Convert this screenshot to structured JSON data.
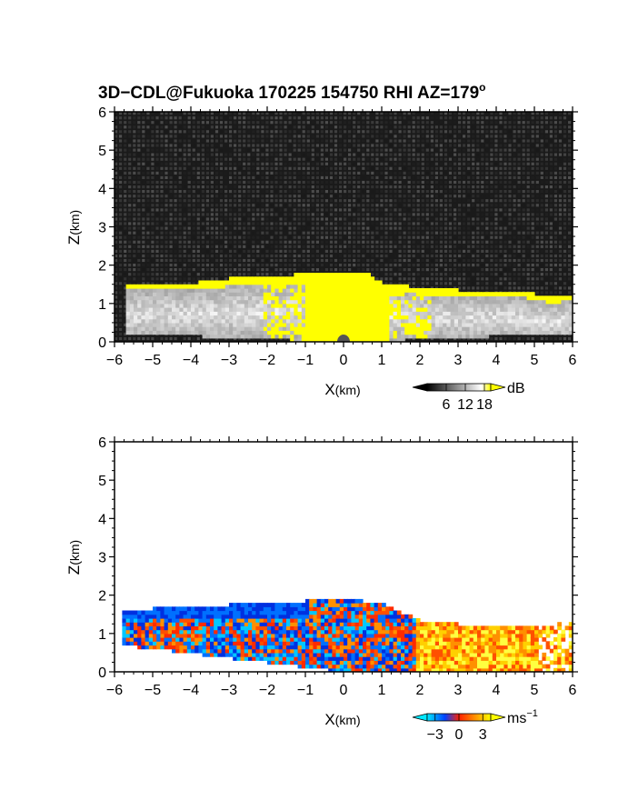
{
  "figure": {
    "title_main": "3D−CDL@Fukuoka 170225 154750 RHI AZ=179",
    "title_superscript": "o"
  },
  "chart_data": [
    {
      "type": "heatmap",
      "panel": "reflectivity",
      "xlabel_main": "X",
      "xlabel_unit": "(km)",
      "ylabel_main": "Z",
      "ylabel_unit": "(km)",
      "xlim": [
        -6,
        6
      ],
      "ylim": [
        0,
        6
      ],
      "x_ticks": [
        "−6",
        "−5",
        "−4",
        "−3",
        "−2",
        "−1",
        "0",
        "1",
        "2",
        "3",
        "4",
        "5",
        "6"
      ],
      "y_ticks": [
        "0",
        "1",
        "2",
        "3",
        "4",
        "5",
        "6"
      ],
      "colorbar": {
        "unit": "dB",
        "ticks": [
          "6",
          "12",
          "18"
        ],
        "range": [
          0,
          20
        ],
        "colors": [
          "#000000",
          "#ffffff",
          "#ffff00"
        ]
      },
      "echo_top_km": [
        [
          -5.7,
          1.5
        ],
        [
          -4.0,
          1.48
        ],
        [
          -3.0,
          1.6
        ],
        [
          -2.0,
          1.65
        ],
        [
          -1.0,
          1.72
        ],
        [
          0.0,
          1.78
        ],
        [
          0.6,
          1.75
        ],
        [
          1.0,
          1.5
        ],
        [
          2.0,
          1.35
        ],
        [
          3.0,
          1.3
        ],
        [
          4.0,
          1.3
        ],
        [
          4.8,
          1.25
        ],
        [
          5.5,
          1.1
        ],
        [
          6.0,
          1.2
        ]
      ]
    },
    {
      "type": "heatmap",
      "panel": "doppler-velocity",
      "xlabel_main": "X",
      "xlabel_unit": "(km)",
      "ylabel_main": "Z",
      "ylabel_unit": "(km)",
      "xlim": [
        -6,
        6
      ],
      "ylim": [
        0,
        6
      ],
      "x_ticks": [
        "−6",
        "−5",
        "−4",
        "−3",
        "−2",
        "−1",
        "0",
        "1",
        "2",
        "3",
        "4",
        "5",
        "6"
      ],
      "y_ticks": [
        "0",
        "1",
        "2",
        "3",
        "4",
        "5",
        "6"
      ],
      "colorbar": {
        "unit": "ms",
        "unit_exponent": "−1",
        "ticks": [
          "−3",
          "0",
          "3"
        ],
        "range": [
          -4,
          4
        ],
        "colors": [
          "#00e0ff",
          "#0050ff",
          "#ff3000",
          "#ffff00"
        ]
      },
      "echo_top_km": [
        [
          -5.8,
          1.5
        ],
        [
          -5.0,
          1.6
        ],
        [
          -4.0,
          1.62
        ],
        [
          -3.0,
          1.7
        ],
        [
          -2.0,
          1.78
        ],
        [
          -1.0,
          1.8
        ],
        [
          0.0,
          1.82
        ],
        [
          1.0,
          1.78
        ],
        [
          1.3,
          1.6
        ],
        [
          2.0,
          1.3
        ],
        [
          3.0,
          1.2
        ],
        [
          4.0,
          1.2
        ],
        [
          5.0,
          1.15
        ],
        [
          6.0,
          1.25
        ]
      ]
    }
  ]
}
